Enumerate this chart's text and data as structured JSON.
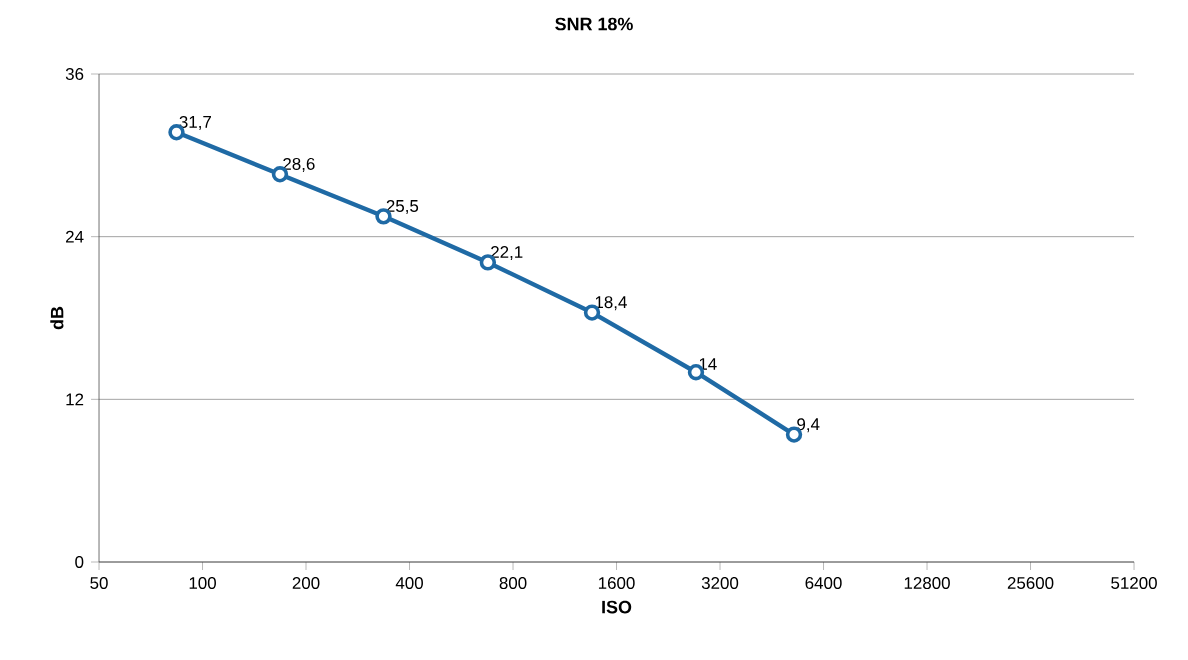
{
  "chart_data": {
    "type": "line",
    "title": "SNR 18%",
    "xlabel": "ISO",
    "ylabel": "dB",
    "log": "x",
    "x": [
      84,
      168,
      336,
      676,
      1358,
      2724,
      5253
    ],
    "series": [
      {
        "color": "#1f6aa5",
        "values": [
          31.7,
          28.6,
          25.5,
          22.1,
          18.4,
          14,
          9.4
        ],
        "value_labels": [
          "31,7",
          "28,6",
          "25,5",
          "22,1",
          "18,4",
          "14",
          "9,4"
        ]
      }
    ],
    "xlim": [
      50,
      51200
    ],
    "xticks": [
      50,
      100,
      200,
      400,
      800,
      1600,
      3200,
      6400,
      12800,
      25600,
      51200
    ],
    "ylim": [
      0,
      36
    ],
    "yticks": [
      0,
      12,
      24,
      36
    ],
    "grid": "y",
    "marker": "circle",
    "line_style": "solid"
  }
}
